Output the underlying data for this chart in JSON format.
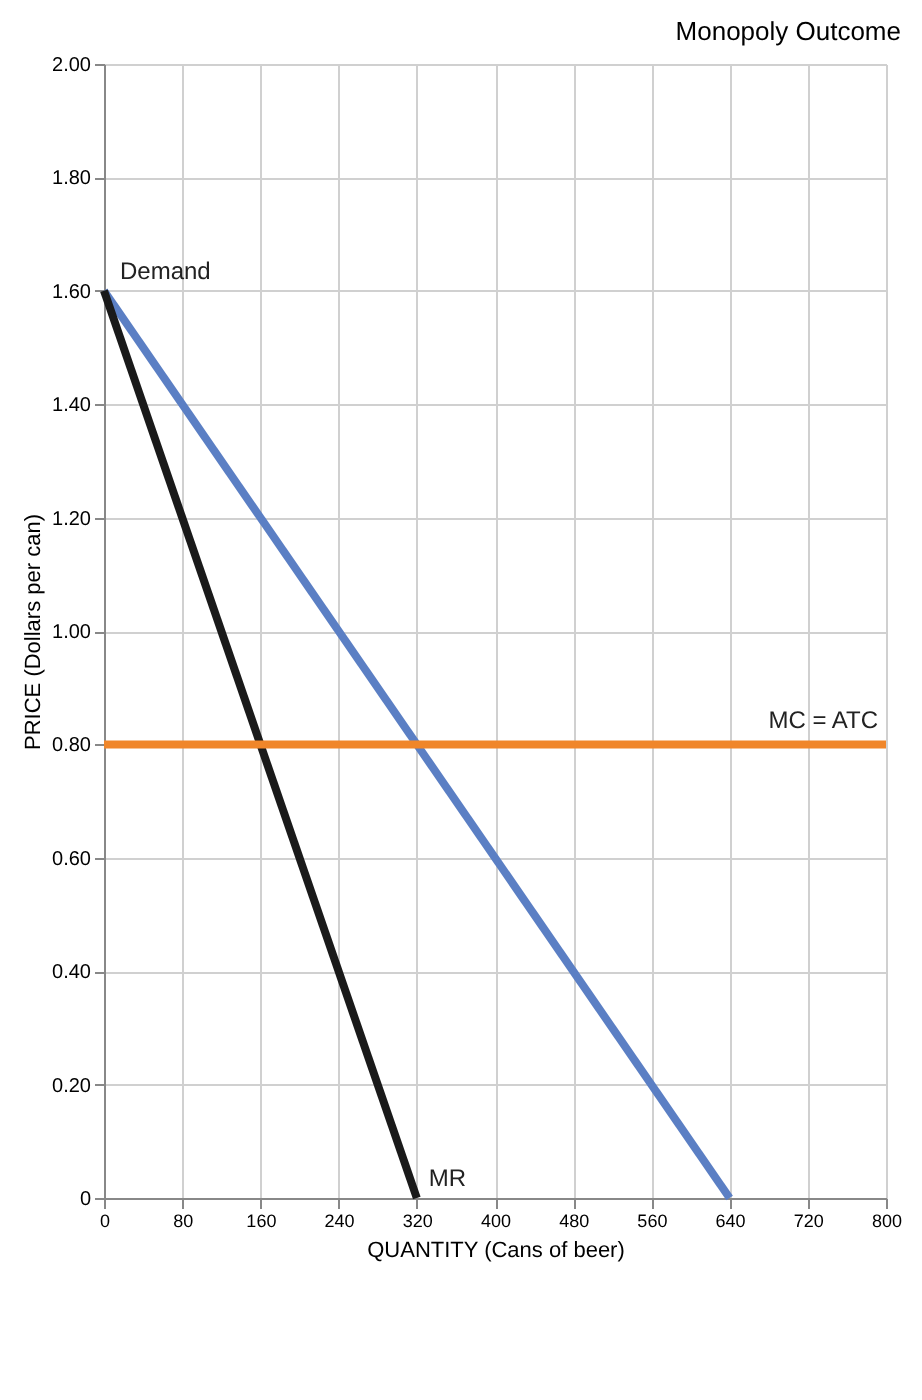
{
  "chart_data": {
    "type": "line",
    "title": "Monopoly Outcome",
    "xlabel": "QUANTITY (Cans of beer)",
    "ylabel": "PRICE (Dollars per can)",
    "xlim": [
      0,
      800
    ],
    "xticks": [
      0,
      80,
      160,
      240,
      320,
      400,
      480,
      560,
      640,
      720,
      800
    ],
    "ylim": [
      0,
      2.0
    ],
    "yticks": [
      {
        "value": 0,
        "label": "0"
      },
      {
        "value": 0.2,
        "label": "0.20"
      },
      {
        "value": 0.4,
        "label": "0.40"
      },
      {
        "value": 0.6,
        "label": "0.60"
      },
      {
        "value": 0.8,
        "label": "0.80"
      },
      {
        "value": 1.0,
        "label": "1.00"
      },
      {
        "value": 1.2,
        "label": "1.20"
      },
      {
        "value": 1.4,
        "label": "1.40"
      },
      {
        "value": 1.6,
        "label": "1.60"
      },
      {
        "value": 1.8,
        "label": "1.80"
      },
      {
        "value": 2.0,
        "label": "2.00"
      }
    ],
    "grid": true,
    "marker": "none",
    "line_style": "solid",
    "series": [
      {
        "name": "Demand",
        "color": "#5b7fc4",
        "x": [
          0,
          640
        ],
        "values": [
          1.6,
          0
        ]
      },
      {
        "name": "MR",
        "color": "#1a1a1a",
        "x": [
          0,
          320
        ],
        "values": [
          1.6,
          0
        ]
      },
      {
        "name": "MC = ATC",
        "color": "#f0862a",
        "x": [
          0,
          800
        ],
        "values": [
          0.8,
          0.8
        ]
      }
    ]
  }
}
